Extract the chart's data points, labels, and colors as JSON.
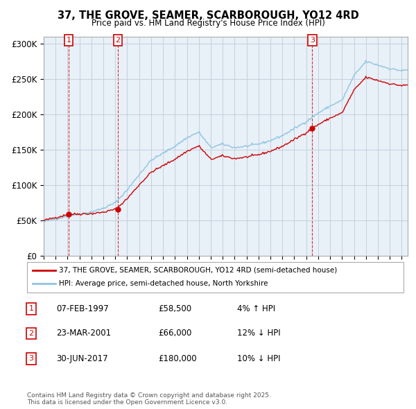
{
  "title": "37, THE GROVE, SEAMER, SCARBOROUGH, YO12 4RD",
  "subtitle": "Price paid vs. HM Land Registry's House Price Index (HPI)",
  "ylim": [
    0,
    310000
  ],
  "yticks": [
    0,
    50000,
    100000,
    150000,
    200000,
    250000,
    300000
  ],
  "ytick_labels": [
    "£0",
    "£50K",
    "£100K",
    "£150K",
    "£200K",
    "£250K",
    "£300K"
  ],
  "sale_year_floats": [
    1997.096,
    2001.221,
    2017.496
  ],
  "sale_prices": [
    58500,
    66000,
    180000
  ],
  "sale_labels": [
    "1",
    "2",
    "3"
  ],
  "sale_info": [
    {
      "label": "1",
      "date": "07-FEB-1997",
      "price": "£58,500",
      "hpi": "4% ↑ HPI"
    },
    {
      "label": "2",
      "date": "23-MAR-2001",
      "price": "£66,000",
      "hpi": "12% ↓ HPI"
    },
    {
      "label": "3",
      "date": "30-JUN-2017",
      "price": "£180,000",
      "hpi": "10% ↓ HPI"
    }
  ],
  "line_color_property": "#cc0000",
  "line_color_hpi": "#8ec4e0",
  "legend_label_property": "37, THE GROVE, SEAMER, SCARBOROUGH, YO12 4RD (semi-detached house)",
  "legend_label_hpi": "HPI: Average price, semi-detached house, North Yorkshire",
  "footer": "Contains HM Land Registry data © Crown copyright and database right 2025.\nThis data is licensed under the Open Government Licence v3.0.",
  "background_color": "#ffffff",
  "chart_bg": "#e8f0f8",
  "grid_color": "#c0ccd8"
}
